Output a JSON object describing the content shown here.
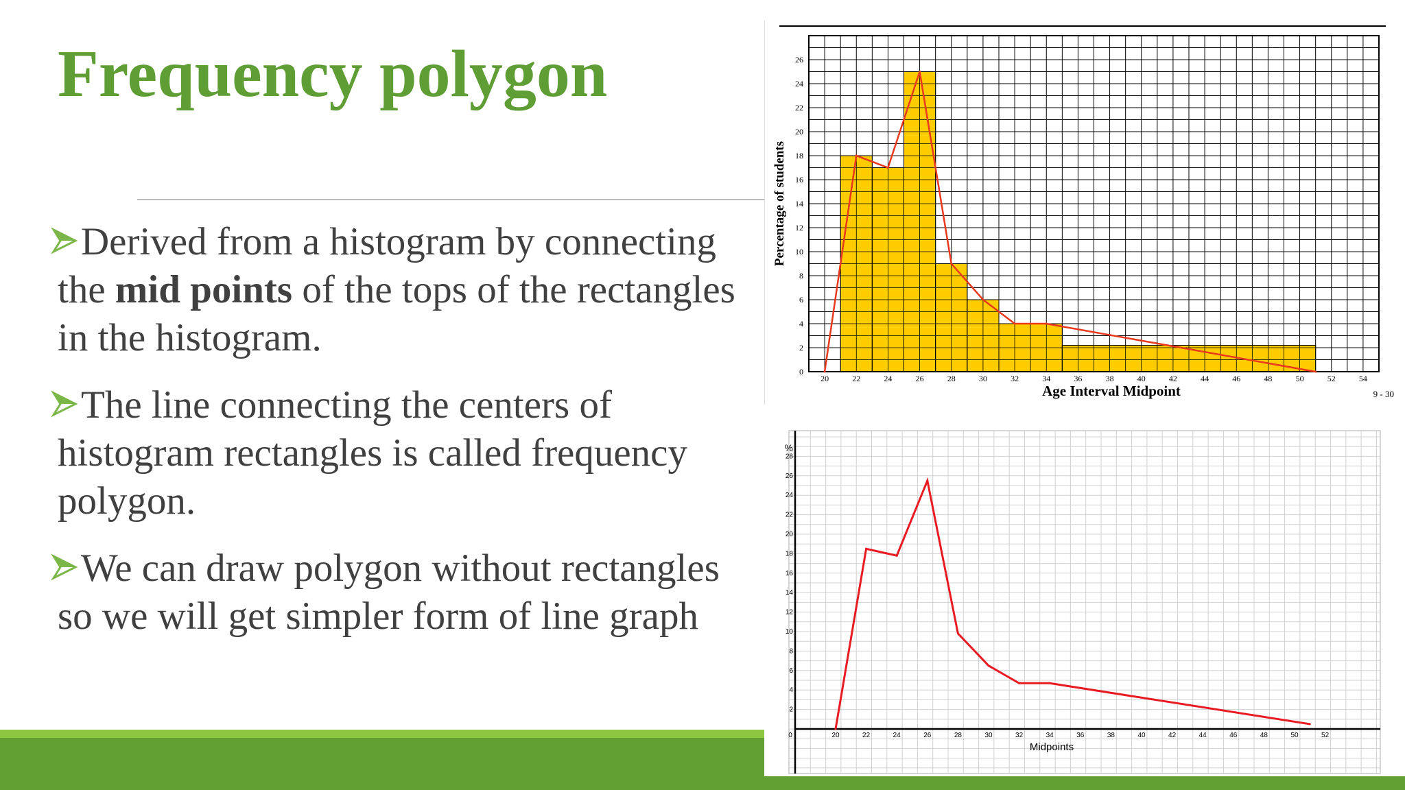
{
  "slide": {
    "title": "Frequency polygon",
    "bullets": [
      {
        "pre": "Derived from a histogram by connecting the ",
        "bold": "mid points",
        "post": " of the tops of the rectangles in the histogram."
      },
      {
        "pre": "The line connecting the centers of histogram rectangles is called frequency polygon.",
        "bold": "",
        "post": ""
      },
      {
        "pre": "We can draw polygon without rectangles so we will get simpler form of line graph",
        "bold": "",
        "post": ""
      }
    ]
  },
  "colors": {
    "title": "#5f9e35",
    "bar": "#ffcc00",
    "line": "#e8391d",
    "accent_light": "#8dc63f",
    "accent_dark": "#63a033"
  },
  "chart_data": [
    {
      "type": "bar",
      "title": "",
      "xlabel": "Age Interval Midpoint",
      "ylabel": "Percentage of students",
      "corner_label": "9 - 30",
      "x_ticks": [
        "20",
        "22",
        "24",
        "26",
        "28",
        "30",
        "32",
        "34",
        "36",
        "38",
        "40",
        "42",
        "44",
        "46",
        "48",
        "50",
        "52",
        "54"
      ],
      "y_ticks": [
        "0",
        "2",
        "4",
        "6",
        "8",
        "10",
        "12",
        "14",
        "16",
        "18",
        "20",
        "22",
        "24",
        "26"
      ],
      "xlim": [
        19,
        55
      ],
      "ylim": [
        0,
        28
      ],
      "grid": true,
      "bars": [
        {
          "x0": 21,
          "x1": 23,
          "value": 18
        },
        {
          "x0": 23,
          "x1": 25,
          "value": 17
        },
        {
          "x0": 25,
          "x1": 27,
          "value": 25
        },
        {
          "x0": 27,
          "x1": 29,
          "value": 9
        },
        {
          "x0": 29,
          "x1": 31,
          "value": 6
        },
        {
          "x0": 31,
          "x1": 35,
          "value": 4
        },
        {
          "x0": 35,
          "x1": 51,
          "value": 2.2
        }
      ],
      "polygon": {
        "x": [
          20,
          22,
          24,
          26,
          28,
          30,
          32,
          34,
          51
        ],
        "y": [
          0,
          18,
          17,
          25,
          9,
          6,
          4,
          4,
          0
        ]
      }
    },
    {
      "type": "line",
      "title": "",
      "xlabel": "Midpoints",
      "ylabel": "%",
      "x_ticks": [
        "0",
        "20",
        "22",
        "24",
        "26",
        "28",
        "30",
        "32",
        "34",
        "36",
        "38",
        "40",
        "42",
        "44",
        "46",
        "48",
        "50",
        "52"
      ],
      "y_ticks": [
        "2",
        "4",
        "6",
        "8",
        "10",
        "12",
        "14",
        "16",
        "18",
        "20",
        "22",
        "24",
        "26",
        "28"
      ],
      "grid": true,
      "series": [
        {
          "x": [
            20,
            22,
            24,
            26,
            28,
            30,
            32,
            34,
            51
          ],
          "y": [
            0,
            18.5,
            17.8,
            25.5,
            9.8,
            6.5,
            4.7,
            4.7,
            0.5
          ]
        }
      ]
    }
  ]
}
